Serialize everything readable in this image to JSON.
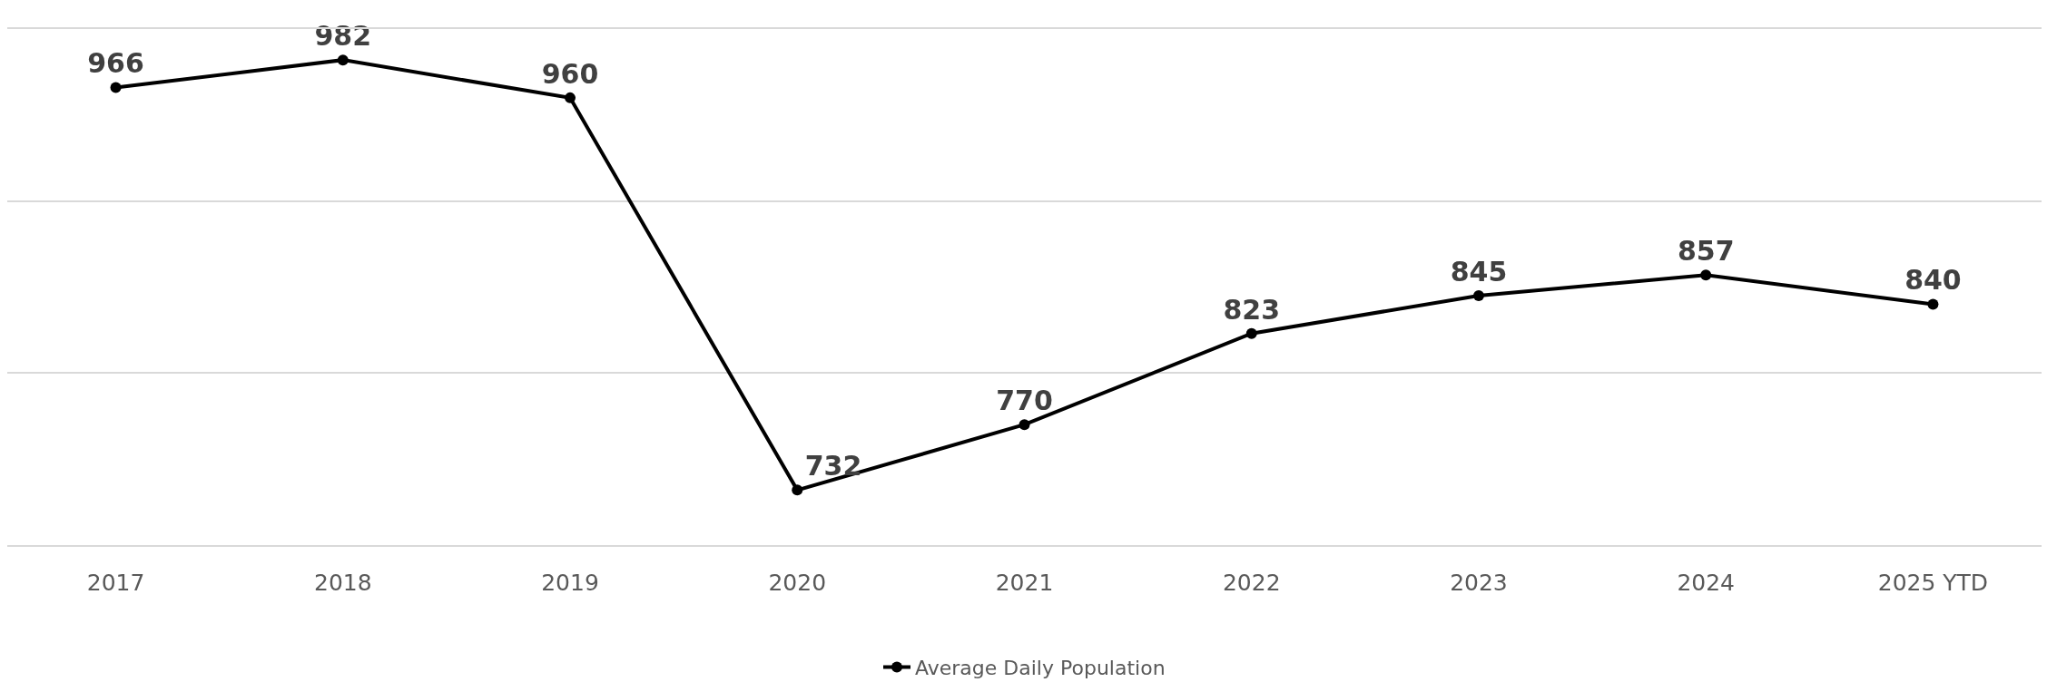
{
  "chart_data": {
    "type": "line",
    "categories": [
      "2017",
      "2018",
      "2019",
      "2020",
      "2021",
      "2022",
      "2023",
      "2024",
      "2025 YTD"
    ],
    "series": [
      {
        "name": "Average Daily Population",
        "color": "#000000",
        "values": [
          966,
          982,
          960,
          732,
          770,
          823,
          845,
          857,
          840
        ]
      }
    ],
    "ylim": [
      700,
      1000
    ],
    "yticks": [
      {
        "value": 700,
        "label": null
      },
      {
        "value": 800,
        "label": null
      },
      {
        "value": 900,
        "label": null
      },
      {
        "value": 1000,
        "label": null
      }
    ],
    "grid": "y",
    "legend": "bottom",
    "marker": "circle",
    "line_style": "solid",
    "data_labels": true,
    "tick_labels": "x"
  }
}
